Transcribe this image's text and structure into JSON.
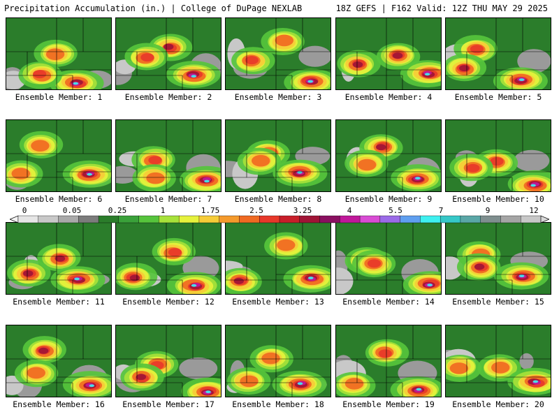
{
  "header": {
    "left_title": "Precipitation Accumulation (in.) | College of DuPage NEXLAB",
    "right_title": "18Z GEFS | F162 Valid: 12Z THU MAY 29 2025"
  },
  "legend": {
    "ticks": [
      "0",
      "0.05",
      "0.25",
      "1",
      "1.75",
      "2.5",
      "3.25",
      "4",
      "5.5",
      "7",
      "9",
      "12"
    ],
    "colors": [
      "#e6e6e6",
      "#c8c8c8",
      "#a9a9a9",
      "#7c7c7c",
      "#2b7d2b",
      "#3aa13a",
      "#56c43c",
      "#a7e23a",
      "#e6f23c",
      "#f6cc38",
      "#f59a2c",
      "#f06a22",
      "#e8382a",
      "#c81e2a",
      "#a01436",
      "#8a1060",
      "#c0189a",
      "#d94cd4",
      "#9b6be8",
      "#5f9ff0",
      "#3ef0f0",
      "#36c8c8",
      "#5aa7a7",
      "#7f8f8f",
      "#a5a5a5",
      "#c8c8c8"
    ]
  },
  "members": [
    {
      "label": "Ensemble Member: 1"
    },
    {
      "label": "Ensemble Member: 2"
    },
    {
      "label": "Ensemble Member: 3"
    },
    {
      "label": "Ensemble Member: 4"
    },
    {
      "label": "Ensemble Member: 5"
    },
    {
      "label": "Ensemble Member: 6"
    },
    {
      "label": "Ensemble Member: 7"
    },
    {
      "label": "Ensemble Member: 8"
    },
    {
      "label": "Ensemble Member: 9"
    },
    {
      "label": "Ensemble Member: 10"
    },
    {
      "label": "Ensemble Member: 11"
    },
    {
      "label": "Ensemble Member: 12"
    },
    {
      "label": "Ensemble Member: 13"
    },
    {
      "label": "Ensemble Member: 14"
    },
    {
      "label": "Ensemble Member: 15"
    },
    {
      "label": "Ensemble Member: 16"
    },
    {
      "label": "Ensemble Member: 17"
    },
    {
      "label": "Ensemble Member: 18"
    },
    {
      "label": "Ensemble Member: 19"
    },
    {
      "label": "Ensemble Member: 20"
    }
  ]
}
